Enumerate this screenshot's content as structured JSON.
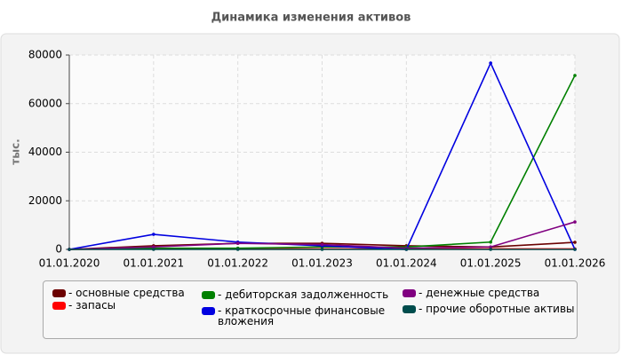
{
  "chart_data": {
    "type": "line",
    "title": "Динамика изменения активов",
    "y_label": "тыс.",
    "categories": [
      "01.01.2020",
      "01.01.2021",
      "01.01.2022",
      "01.01.2023",
      "01.01.2024",
      "01.01.2025",
      "01.01.2026"
    ],
    "series": [
      {
        "name": "- основные средства",
        "color": "#6b0000",
        "values": [
          0,
          1500,
          2500,
          2500,
          1500,
          1000,
          2900
        ]
      },
      {
        "name": "- запасы",
        "color": "#ff0000",
        "values": [
          0,
          200,
          200,
          200,
          200,
          200,
          200
        ]
      },
      {
        "name": "- дебиторская задолженность",
        "color": "#008000",
        "values": [
          0,
          500,
          500,
          1000,
          1000,
          3000,
          71600
        ]
      },
      {
        "name": "- краткосрочные финансовые вложения",
        "color": "#0000e0",
        "values": [
          0,
          6200,
          3000,
          1500,
          0,
          76700,
          0
        ]
      },
      {
        "name": "- денежные средства",
        "color": "#800080",
        "values": [
          0,
          1000,
          2500,
          2000,
          500,
          1000,
          11300
        ]
      },
      {
        "name": "- прочие оборотные активы",
        "color": "#004d4d",
        "values": [
          0,
          0,
          0,
          0,
          0,
          0,
          0
        ]
      }
    ],
    "ylim": [
      0,
      80000
    ],
    "yticks": [
      0,
      20000,
      40000,
      60000,
      80000
    ],
    "grid": true
  }
}
